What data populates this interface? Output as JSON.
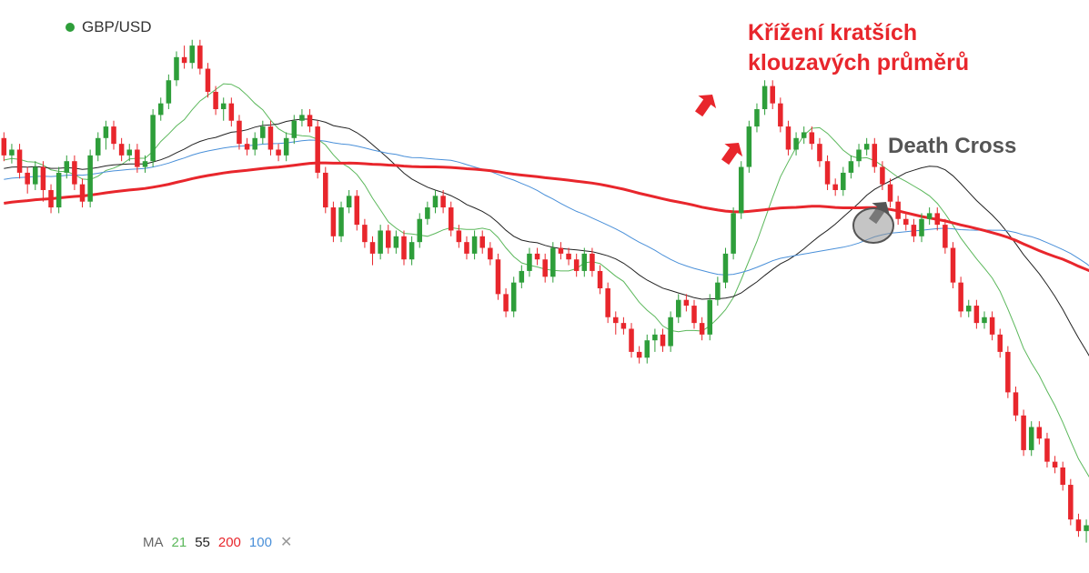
{
  "symbol": {
    "name": "GBP/USD",
    "dot_color": "#2e9e3a"
  },
  "annotations": {
    "crossover_line1": "Křížení kratších",
    "crossover_line2": "klouzavých průměrů",
    "death_cross": "Death Cross",
    "red_color": "#e8262c",
    "dark_color": "#555555"
  },
  "ma_legend": {
    "label": "MA",
    "items": [
      {
        "period": "21",
        "color": "#5cb85c"
      },
      {
        "period": "55",
        "color": "#222222"
      },
      {
        "period": "200",
        "color": "#e8262c"
      },
      {
        "period": "100",
        "color": "#4a90d9"
      }
    ],
    "close_icon": "close-icon"
  },
  "chart_data": {
    "type": "candlestick",
    "series": [
      {
        "name": "GBP/USD",
        "kind": "ohlc",
        "up_color": "#2e9e3a",
        "down_color": "#e8262c",
        "candles": [
          [
            310,
            295,
            315,
            290
          ],
          [
            295,
            300,
            305,
            288
          ],
          [
            300,
            280,
            305,
            275
          ],
          [
            280,
            270,
            285,
            262
          ],
          [
            270,
            285,
            290,
            265
          ],
          [
            285,
            265,
            290,
            255
          ],
          [
            265,
            250,
            270,
            245
          ],
          [
            250,
            280,
            285,
            245
          ],
          [
            280,
            290,
            295,
            275
          ],
          [
            290,
            270,
            295,
            265
          ],
          [
            270,
            255,
            275,
            250
          ],
          [
            255,
            295,
            300,
            250
          ],
          [
            295,
            310,
            315,
            290
          ],
          [
            310,
            320,
            325,
            300
          ],
          [
            320,
            305,
            325,
            300
          ],
          [
            305,
            295,
            310,
            290
          ],
          [
            295,
            300,
            305,
            290
          ],
          [
            300,
            285,
            305,
            280
          ],
          [
            285,
            290,
            295,
            280
          ],
          [
            290,
            330,
            335,
            285
          ],
          [
            330,
            340,
            345,
            325
          ],
          [
            340,
            360,
            365,
            335
          ],
          [
            360,
            380,
            385,
            355
          ],
          [
            380,
            375,
            390,
            370
          ],
          [
            375,
            390,
            395,
            370
          ],
          [
            390,
            370,
            395,
            365
          ],
          [
            370,
            350,
            375,
            345
          ],
          [
            350,
            335,
            355,
            330
          ],
          [
            335,
            340,
            345,
            325
          ],
          [
            340,
            325,
            345,
            320
          ],
          [
            325,
            305,
            330,
            300
          ],
          [
            305,
            300,
            310,
            295
          ],
          [
            300,
            310,
            315,
            295
          ],
          [
            310,
            320,
            325,
            305
          ],
          [
            320,
            300,
            325,
            295
          ],
          [
            300,
            295,
            305,
            290
          ],
          [
            295,
            310,
            315,
            290
          ],
          [
            310,
            325,
            330,
            305
          ],
          [
            325,
            330,
            335,
            320
          ],
          [
            330,
            320,
            335,
            315
          ],
          [
            320,
            280,
            325,
            275
          ],
          [
            280,
            250,
            285,
            245
          ],
          [
            250,
            225,
            255,
            220
          ],
          [
            225,
            250,
            255,
            220
          ],
          [
            250,
            260,
            265,
            245
          ],
          [
            260,
            235,
            265,
            230
          ],
          [
            235,
            220,
            240,
            215
          ],
          [
            220,
            210,
            225,
            200
          ],
          [
            210,
            230,
            235,
            205
          ],
          [
            230,
            215,
            235,
            210
          ],
          [
            215,
            225,
            230,
            210
          ],
          [
            225,
            205,
            230,
            200
          ],
          [
            205,
            220,
            225,
            200
          ],
          [
            220,
            240,
            245,
            215
          ],
          [
            240,
            250,
            255,
            235
          ],
          [
            250,
            260,
            265,
            245
          ],
          [
            260,
            250,
            265,
            245
          ],
          [
            250,
            230,
            255,
            225
          ],
          [
            230,
            220,
            235,
            215
          ],
          [
            220,
            210,
            225,
            205
          ],
          [
            210,
            225,
            230,
            205
          ],
          [
            225,
            215,
            230,
            210
          ],
          [
            215,
            205,
            220,
            200
          ],
          [
            205,
            175,
            210,
            170
          ],
          [
            175,
            160,
            180,
            155
          ],
          [
            160,
            185,
            190,
            155
          ],
          [
            185,
            195,
            200,
            180
          ],
          [
            195,
            210,
            215,
            190
          ],
          [
            210,
            205,
            215,
            200
          ],
          [
            205,
            190,
            210,
            185
          ],
          [
            190,
            215,
            220,
            185
          ],
          [
            215,
            210,
            220,
            205
          ],
          [
            210,
            205,
            215,
            200
          ],
          [
            205,
            195,
            210,
            190
          ],
          [
            195,
            210,
            215,
            190
          ],
          [
            210,
            195,
            215,
            190
          ],
          [
            195,
            180,
            200,
            175
          ],
          [
            180,
            155,
            185,
            150
          ],
          [
            155,
            150,
            160,
            140
          ],
          [
            150,
            145,
            155,
            140
          ],
          [
            145,
            125,
            150,
            120
          ],
          [
            125,
            120,
            130,
            115
          ],
          [
            120,
            135,
            140,
            115
          ],
          [
            135,
            140,
            145,
            125
          ],
          [
            140,
            130,
            145,
            125
          ],
          [
            130,
            155,
            160,
            125
          ],
          [
            155,
            170,
            175,
            150
          ],
          [
            170,
            165,
            175,
            160
          ],
          [
            165,
            150,
            170,
            145
          ],
          [
            150,
            140,
            155,
            135
          ],
          [
            140,
            170,
            175,
            135
          ],
          [
            170,
            185,
            190,
            165
          ],
          [
            185,
            210,
            215,
            180
          ],
          [
            210,
            245,
            250,
            205
          ],
          [
            245,
            285,
            290,
            240
          ],
          [
            285,
            320,
            325,
            280
          ],
          [
            320,
            335,
            340,
            315
          ],
          [
            335,
            355,
            360,
            330
          ],
          [
            355,
            340,
            360,
            335
          ],
          [
            340,
            320,
            345,
            315
          ],
          [
            320,
            300,
            325,
            295
          ],
          [
            300,
            310,
            315,
            295
          ],
          [
            310,
            315,
            320,
            305
          ],
          [
            315,
            305,
            320,
            300
          ],
          [
            305,
            290,
            310,
            285
          ],
          [
            290,
            270,
            295,
            265
          ],
          [
            270,
            265,
            275,
            260
          ],
          [
            265,
            280,
            285,
            260
          ],
          [
            280,
            290,
            295,
            275
          ],
          [
            290,
            300,
            305,
            285
          ],
          [
            300,
            305,
            310,
            295
          ],
          [
            305,
            285,
            310,
            280
          ],
          [
            285,
            270,
            290,
            265
          ],
          [
            270,
            255,
            275,
            250
          ],
          [
            255,
            240,
            260,
            235
          ],
          [
            240,
            235,
            245,
            230
          ],
          [
            235,
            225,
            240,
            220
          ],
          [
            225,
            240,
            245,
            220
          ],
          [
            240,
            245,
            250,
            235
          ],
          [
            245,
            235,
            250,
            230
          ],
          [
            235,
            215,
            240,
            210
          ],
          [
            215,
            185,
            220,
            180
          ],
          [
            185,
            160,
            190,
            155
          ],
          [
            160,
            165,
            170,
            155
          ],
          [
            165,
            150,
            170,
            145
          ],
          [
            150,
            155,
            160,
            145
          ],
          [
            155,
            140,
            160,
            135
          ],
          [
            140,
            125,
            145,
            120
          ],
          [
            125,
            90,
            130,
            85
          ],
          [
            90,
            70,
            95,
            65
          ],
          [
            70,
            40,
            75,
            35
          ],
          [
            40,
            60,
            65,
            35
          ],
          [
            60,
            50,
            65,
            45
          ],
          [
            50,
            30,
            55,
            25
          ],
          [
            30,
            25,
            35,
            20
          ],
          [
            25,
            10,
            30,
            5
          ],
          [
            10,
            -20,
            15,
            -25
          ],
          [
            -20,
            -30,
            -15,
            -35
          ],
          [
            -30,
            -25,
            -20,
            -40
          ],
          [
            -25,
            -45,
            -20,
            -50
          ]
        ]
      }
    ],
    "moving_averages": [
      {
        "name": "21",
        "period": 21,
        "color": "#5cb85c",
        "width": 1
      },
      {
        "name": "55",
        "period": 55,
        "color": "#222222",
        "width": 1
      },
      {
        "name": "100",
        "period": 100,
        "color": "#4a90d9",
        "width": 1
      },
      {
        "name": "200",
        "period": 200,
        "color": "#e8262c",
        "width": 3
      }
    ],
    "grid": false,
    "legend_position": "top-left"
  }
}
